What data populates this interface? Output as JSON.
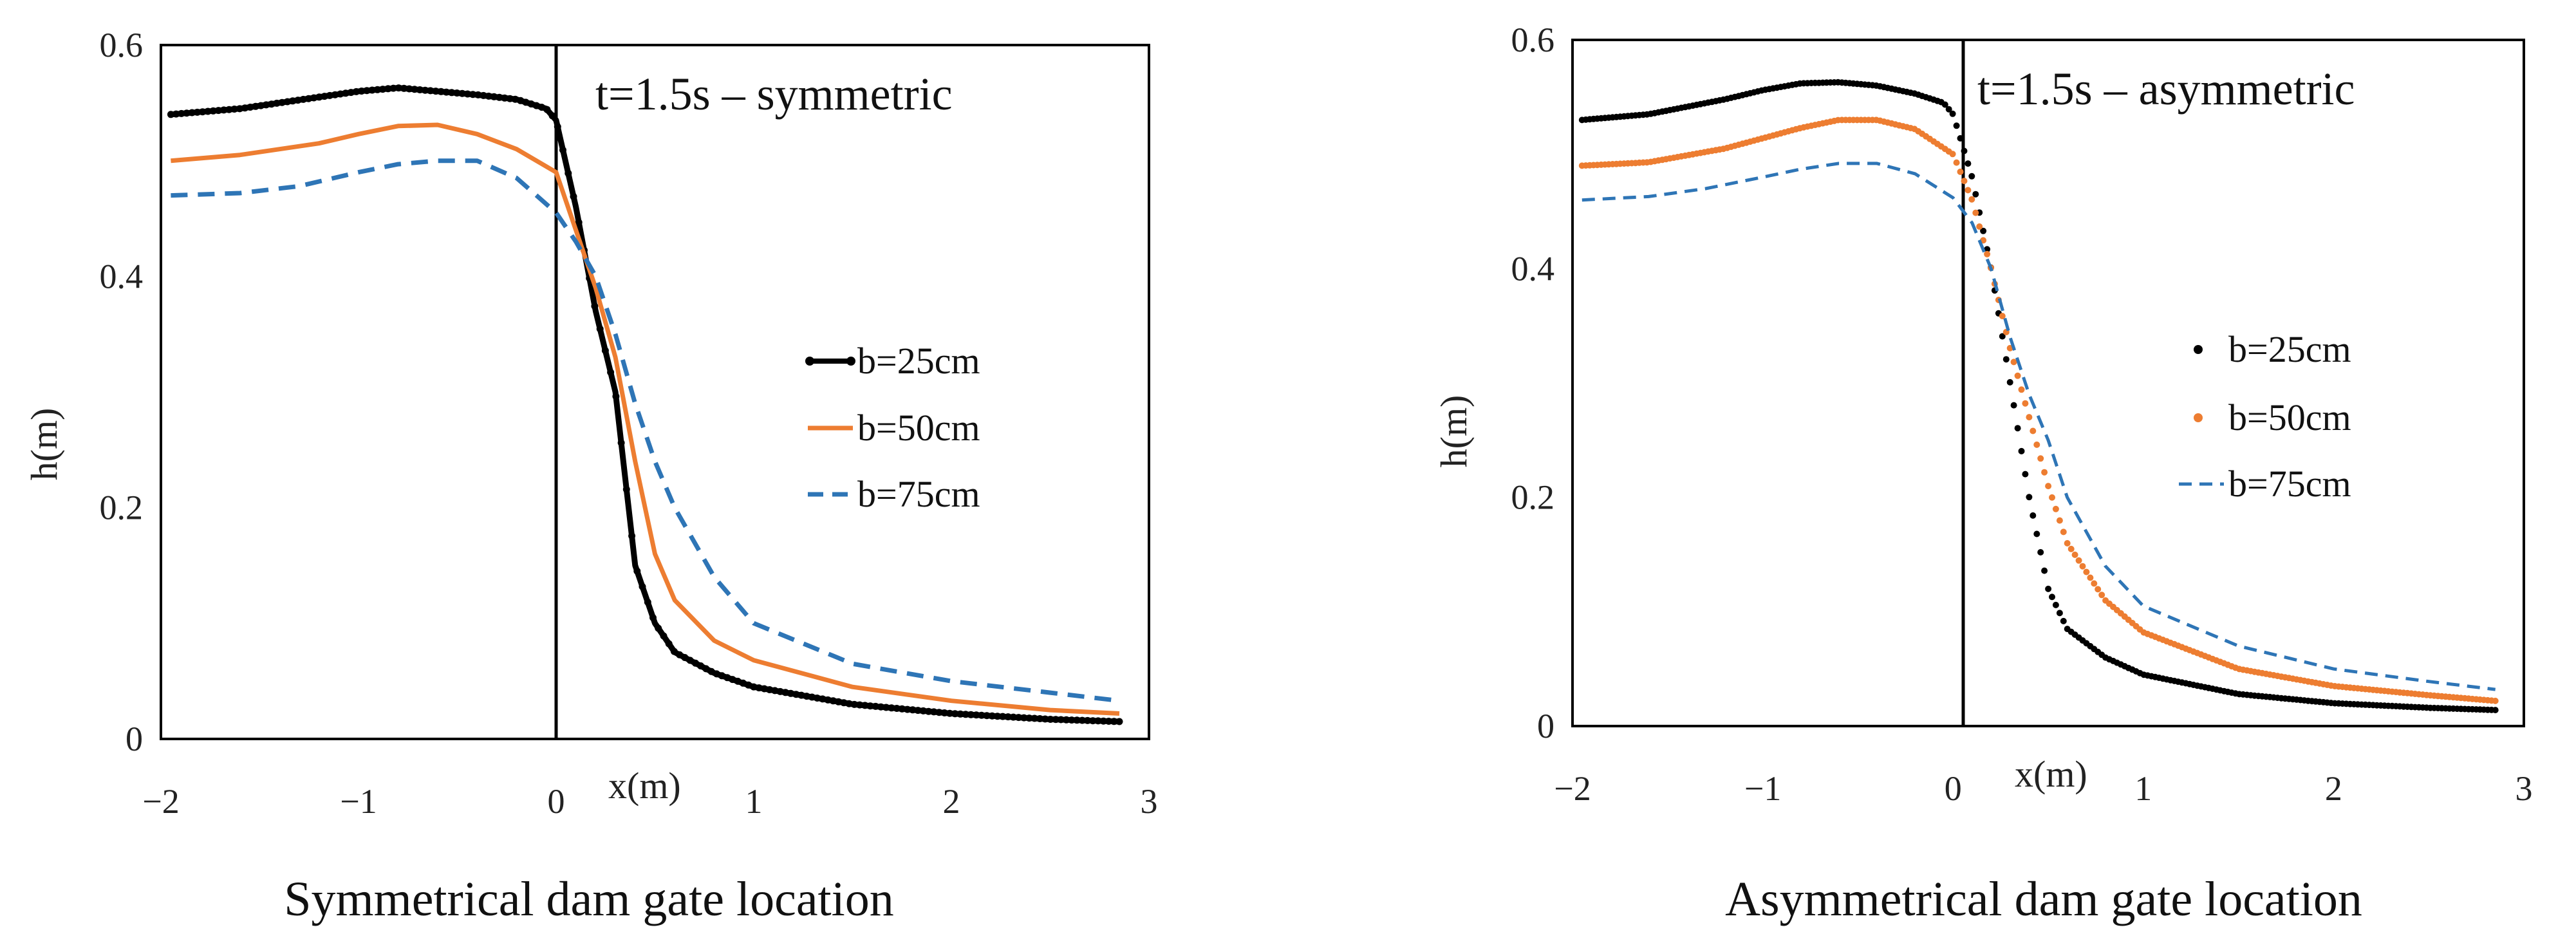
{
  "chart_data": [
    {
      "type": "line",
      "title": "t=1.5s – symmetric",
      "caption": "Symmetrical dam gate location",
      "xlabel": "x(m)",
      "ylabel": "h(m)",
      "xlim": [
        -2,
        3
      ],
      "ylim": [
        0,
        0.6
      ],
      "xticks": [
        -2,
        -1,
        0,
        1,
        2,
        3
      ],
      "xtick_labels": [
        "−2",
        "−1",
        "0",
        "1",
        "2",
        "3"
      ],
      "yticks": [
        0,
        0.2,
        0.4,
        0.6
      ],
      "ytick_labels": [
        "0",
        "0.2",
        "0.4",
        "0.6"
      ],
      "gate_x": 0,
      "legend": [
        "b=25cm",
        "b=50cm",
        "b=75cm"
      ],
      "series": [
        {
          "name": "b=25cm",
          "color": "#000000",
          "style": "dotted-solid",
          "x": [
            -1.95,
            -1.6,
            -1.2,
            -1.0,
            -0.8,
            -0.6,
            -0.4,
            -0.2,
            -0.05,
            0.0,
            0.1,
            0.2,
            0.3,
            0.4,
            0.5,
            0.6,
            0.8,
            1.0,
            1.5,
            2.0,
            2.5,
            2.85
          ],
          "y": [
            0.54,
            0.545,
            0.555,
            0.56,
            0.563,
            0.56,
            0.557,
            0.553,
            0.545,
            0.535,
            0.46,
            0.37,
            0.3,
            0.15,
            0.1,
            0.075,
            0.057,
            0.045,
            0.03,
            0.022,
            0.017,
            0.015
          ]
        },
        {
          "name": "b=50cm",
          "color": "#ED7D31",
          "style": "solid",
          "x": [
            -1.95,
            -1.6,
            -1.2,
            -1.0,
            -0.8,
            -0.6,
            -0.4,
            -0.2,
            0.0,
            0.1,
            0.2,
            0.3,
            0.4,
            0.5,
            0.6,
            0.8,
            1.0,
            1.5,
            2.0,
            2.5,
            2.85
          ],
          "y": [
            0.5,
            0.505,
            0.515,
            0.523,
            0.53,
            0.531,
            0.523,
            0.51,
            0.49,
            0.44,
            0.39,
            0.33,
            0.24,
            0.16,
            0.12,
            0.085,
            0.068,
            0.045,
            0.033,
            0.025,
            0.022
          ]
        },
        {
          "name": "b=75cm",
          "color": "#2E75B6",
          "style": "dashed",
          "x": [
            -1.95,
            -1.6,
            -1.3,
            -1.0,
            -0.8,
            -0.6,
            -0.4,
            -0.2,
            0.0,
            0.1,
            0.2,
            0.3,
            0.4,
            0.5,
            0.6,
            0.8,
            1.0,
            1.5,
            2.0,
            2.5,
            2.85
          ],
          "y": [
            0.47,
            0.472,
            0.478,
            0.49,
            0.497,
            0.5,
            0.5,
            0.485,
            0.455,
            0.43,
            0.4,
            0.35,
            0.29,
            0.24,
            0.2,
            0.14,
            0.1,
            0.065,
            0.05,
            0.04,
            0.033
          ]
        }
      ]
    },
    {
      "type": "line",
      "title": "t=1.5s – asymmetric",
      "caption": "Asymmetrical dam gate location",
      "xlabel": "x(m)",
      "ylabel": "h(m)",
      "xlim": [
        -2,
        3
      ],
      "ylim": [
        0,
        0.6
      ],
      "xticks": [
        -2,
        -1,
        0,
        1,
        2,
        3
      ],
      "xtick_labels": [
        "−2",
        "−1",
        "0",
        "1",
        "2",
        "3"
      ],
      "yticks": [
        0,
        0.2,
        0.4,
        0.6
      ],
      "ytick_labels": [
        "0",
        "0.2",
        "0.4",
        "0.6"
      ],
      "gate_x": 0,
      "legend": [
        "b=25cm",
        "b=50cm",
        "b=75cm"
      ],
      "series": [
        {
          "name": "b=25cm",
          "color": "#000000",
          "style": "dotted",
          "x": [
            -1.95,
            -1.6,
            -1.2,
            -1.0,
            -0.8,
            -0.6,
            -0.4,
            -0.2,
            -0.05,
            0.0,
            0.1,
            0.2,
            0.3,
            0.4,
            0.5,
            0.6,
            0.8,
            1.0,
            1.5,
            2.0,
            2.5,
            2.85
          ],
          "y": [
            0.53,
            0.535,
            0.548,
            0.556,
            0.562,
            0.563,
            0.56,
            0.553,
            0.545,
            0.535,
            0.48,
            0.4,
            0.3,
            0.2,
            0.12,
            0.085,
            0.06,
            0.045,
            0.028,
            0.02,
            0.016,
            0.014
          ]
        },
        {
          "name": "b=50cm",
          "color": "#ED7D31",
          "style": "dotted",
          "x": [
            -1.95,
            -1.6,
            -1.2,
            -1.0,
            -0.8,
            -0.6,
            -0.4,
            -0.2,
            0.0,
            0.1,
            0.2,
            0.3,
            0.4,
            0.5,
            0.6,
            0.8,
            1.0,
            1.5,
            2.0,
            2.5,
            2.85
          ],
          "y": [
            0.49,
            0.493,
            0.505,
            0.514,
            0.523,
            0.53,
            0.53,
            0.522,
            0.5,
            0.46,
            0.4,
            0.33,
            0.27,
            0.21,
            0.16,
            0.11,
            0.082,
            0.05,
            0.035,
            0.027,
            0.022
          ]
        },
        {
          "name": "b=75cm",
          "color": "#2E75B6",
          "style": "dashed",
          "x": [
            -1.95,
            -1.6,
            -1.3,
            -1.0,
            -0.8,
            -0.6,
            -0.4,
            -0.2,
            0.0,
            0.1,
            0.2,
            0.3,
            0.4,
            0.5,
            0.6,
            0.8,
            1.0,
            1.5,
            2.0,
            2.5,
            2.85
          ],
          "y": [
            0.46,
            0.463,
            0.47,
            0.48,
            0.487,
            0.492,
            0.492,
            0.483,
            0.462,
            0.44,
            0.4,
            0.34,
            0.29,
            0.25,
            0.2,
            0.14,
            0.105,
            0.07,
            0.05,
            0.039,
            0.032
          ]
        }
      ]
    }
  ]
}
